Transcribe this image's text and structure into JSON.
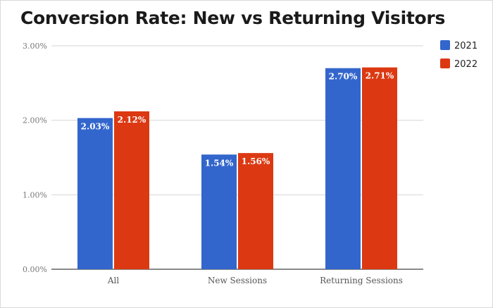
{
  "chart_data": {
    "type": "bar",
    "title": "Conversion Rate: New vs Returning Visitors",
    "categories": [
      "All",
      "New Sessions",
      "Returning Sessions"
    ],
    "series": [
      {
        "name": "2021",
        "color": "#3366cc",
        "values": [
          2.03,
          1.54,
          2.7
        ],
        "labels": [
          "2.03%",
          "1.54%",
          "2.70%"
        ]
      },
      {
        "name": "2022",
        "color": "#dc3912",
        "values": [
          2.12,
          1.56,
          2.71
        ],
        "labels": [
          "2.12%",
          "1.56%",
          "2.71%"
        ]
      }
    ],
    "ylim": [
      0,
      3
    ],
    "yticks": [
      0,
      1,
      2,
      3
    ],
    "ytick_labels": [
      "0.00%",
      "1.00%",
      "2.00%",
      "3.00%"
    ],
    "xlabel": "",
    "ylabel": "",
    "grid": true,
    "legend_position": "top-right"
  }
}
